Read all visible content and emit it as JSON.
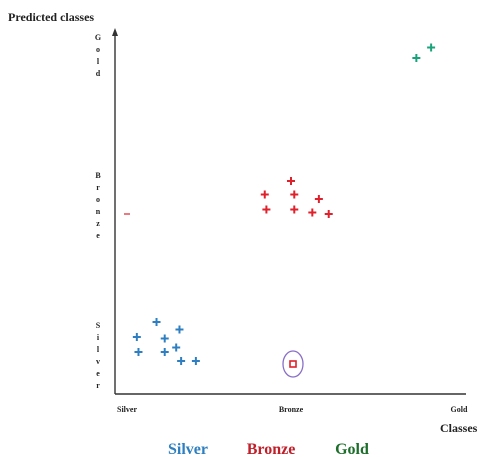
{
  "chart_data": {
    "type": "scatter",
    "ylabel": "Predicted classes",
    "xlabel": "Classes",
    "x_categories": [
      "Silver",
      "Bronze",
      "Gold"
    ],
    "y_categories": [
      "Silver",
      "Bronze",
      "Gold"
    ],
    "grid": false,
    "legend_position": "bottom",
    "series": [
      {
        "name": "Silver",
        "color": "#2e7fc1",
        "marker": "plus",
        "points": [
          {
            "x": "Silver",
            "y": "Silver",
            "dx": 0.18,
            "dy": 0.22
          },
          {
            "x": "Silver",
            "y": "Silver",
            "dx": 0.06,
            "dy": 0.12
          },
          {
            "x": "Silver",
            "y": "Silver",
            "dx": 0.23,
            "dy": 0.11
          },
          {
            "x": "Silver",
            "y": "Silver",
            "dx": 0.32,
            "dy": 0.17
          },
          {
            "x": "Silver",
            "y": "Silver",
            "dx": 0.07,
            "dy": 0.02
          },
          {
            "x": "Silver",
            "y": "Silver",
            "dx": 0.23,
            "dy": 0.02
          },
          {
            "x": "Silver",
            "y": "Silver",
            "dx": 0.3,
            "dy": 0.05
          },
          {
            "x": "Silver",
            "y": "Silver",
            "dx": 0.33,
            "dy": -0.04
          },
          {
            "x": "Silver",
            "y": "Silver",
            "dx": 0.42,
            "dy": -0.04
          }
        ]
      },
      {
        "name": "Bronze",
        "color": "#e0202a",
        "marker": "plus",
        "points": [
          {
            "x": "Bronze",
            "y": "Bronze",
            "dx": 0.0,
            "dy": 0.16
          },
          {
            "x": "Bronze",
            "y": "Bronze",
            "dx": -0.16,
            "dy": 0.07
          },
          {
            "x": "Bronze",
            "y": "Bronze",
            "dx": 0.02,
            "dy": 0.07
          },
          {
            "x": "Bronze",
            "y": "Bronze",
            "dx": 0.17,
            "dy": 0.04
          },
          {
            "x": "Bronze",
            "y": "Bronze",
            "dx": -0.15,
            "dy": -0.03
          },
          {
            "x": "Bronze",
            "y": "Bronze",
            "dx": 0.02,
            "dy": -0.03
          },
          {
            "x": "Bronze",
            "y": "Bronze",
            "dx": 0.13,
            "dy": -0.05
          },
          {
            "x": "Bronze",
            "y": "Bronze",
            "dx": 0.23,
            "dy": -0.06
          },
          {
            "x": "Silver",
            "y": "Bronze",
            "dx": 0.0,
            "dy": -0.06,
            "marker": "dash"
          }
        ]
      },
      {
        "name": "Gold",
        "color": "#1aa37a",
        "marker": "plus",
        "points": [
          {
            "x": "Gold",
            "y": "Gold",
            "dx": -0.17,
            "dy": 0.05
          },
          {
            "x": "Gold",
            "y": "Gold",
            "dx": -0.26,
            "dy": -0.02
          }
        ]
      }
    ],
    "highlight": {
      "x": "Bronze",
      "y": "Silver",
      "marker": "square",
      "color": "#e0202a",
      "circle_color": "#8a6fc8"
    },
    "legend": [
      {
        "label": "Silver",
        "color": "#2e7fc1"
      },
      {
        "label": "Bronze",
        "color": "#c0202a"
      },
      {
        "label": "Gold",
        "color": "#1c6e2a"
      }
    ]
  }
}
